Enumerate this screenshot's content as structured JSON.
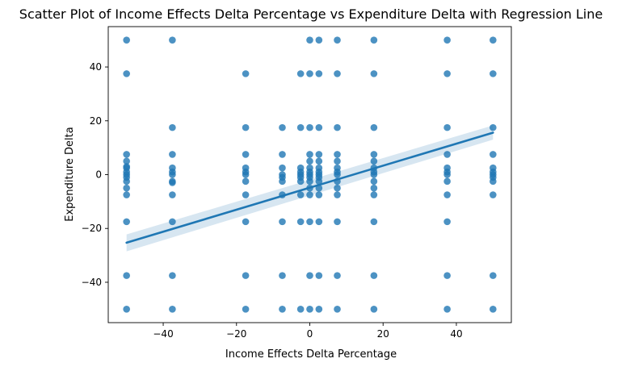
{
  "chart_data": {
    "type": "scatter",
    "title": "Scatter Plot of Income Effects Delta Percentage vs Expenditure Delta with Regression Line",
    "xlabel": "Income Effects Delta Percentage",
    "ylabel": "Expenditure Delta",
    "xlim": [
      -55,
      55
    ],
    "ylim": [
      -55,
      55
    ],
    "xticks": [
      -40,
      -20,
      0,
      20,
      40
    ],
    "yticks": [
      -40,
      -20,
      0,
      20,
      40
    ],
    "xtick_labels": [
      "−40",
      "−20",
      "0",
      "20",
      "40"
    ],
    "ytick_labels": [
      "−40",
      "−20",
      "0",
      "20",
      "40"
    ],
    "grid": false,
    "points": {
      "x": [
        -50,
        -50,
        -50,
        -50,
        -50,
        -50,
        -50,
        -50,
        -50,
        -50,
        -50,
        -50,
        -50,
        -50,
        -50,
        -37.5,
        -37.5,
        -37.5,
        -37.5,
        -37.5,
        -37.5,
        -37.5,
        -37.5,
        -37.5,
        -37.5,
        -37.5,
        -37.5,
        -17.5,
        -17.5,
        -17.5,
        -17.5,
        -17.5,
        -17.5,
        -17.5,
        -17.5,
        -17.5,
        -17.5,
        -17.5,
        -7.5,
        -7.5,
        -7.5,
        -7.5,
        -7.5,
        -7.5,
        -7.5,
        -7.5,
        -7.5,
        -7.5,
        -2.5,
        -2.5,
        -2.5,
        -2.5,
        -2.5,
        -2.5,
        -2.5,
        -2.5,
        -2.5,
        -2.5,
        0,
        0,
        0,
        0,
        0,
        0,
        0,
        0,
        0,
        0,
        0,
        0,
        0,
        0,
        0,
        2.5,
        2.5,
        2.5,
        2.5,
        2.5,
        2.5,
        2.5,
        2.5,
        2.5,
        2.5,
        2.5,
        2.5,
        2.5,
        2.5,
        2.5,
        7.5,
        7.5,
        7.5,
        7.5,
        7.5,
        7.5,
        7.5,
        7.5,
        7.5,
        7.5,
        7.5,
        7.5,
        7.5,
        7.5,
        17.5,
        17.5,
        17.5,
        17.5,
        17.5,
        17.5,
        17.5,
        17.5,
        17.5,
        17.5,
        17.5,
        17.5,
        17.5,
        17.5,
        37.5,
        37.5,
        37.5,
        37.5,
        37.5,
        37.5,
        37.5,
        37.5,
        37.5,
        37.5,
        37.5,
        37.5,
        50,
        50,
        50,
        50,
        50,
        50,
        50,
        50,
        50,
        50,
        50,
        50
      ],
      "y": [
        50,
        37.5,
        7.5,
        5,
        2.5,
        0,
        -2.5,
        -5,
        -7.5,
        -17.5,
        -37.5,
        -50,
        1,
        -1,
        3,
        50,
        17.5,
        7.5,
        2.5,
        0,
        -2.5,
        -7.5,
        -17.5,
        -37.5,
        -50,
        1,
        -3,
        37.5,
        17.5,
        7.5,
        2.5,
        0,
        -2.5,
        -7.5,
        -17.5,
        -37.5,
        -50,
        1,
        17.5,
        7.5,
        2.5,
        0,
        -2.5,
        -7.5,
        -17.5,
        -37.5,
        -50,
        -1,
        37.5,
        17.5,
        2.5,
        0,
        -2.5,
        -7.5,
        -17.5,
        -50,
        1,
        -1,
        50,
        37.5,
        17.5,
        7.5,
        5,
        2.5,
        0,
        -2.5,
        -5,
        -7.5,
        -17.5,
        -37.5,
        -50,
        1,
        -1,
        50,
        37.5,
        17.5,
        7.5,
        5,
        2.5,
        0,
        -2.5,
        -5,
        -7.5,
        -17.5,
        -37.5,
        -50,
        1,
        -1,
        50,
        37.5,
        17.5,
        7.5,
        5,
        2.5,
        0,
        -2.5,
        -5,
        -7.5,
        -17.5,
        -37.5,
        -50,
        1,
        50,
        37.5,
        17.5,
        7.5,
        5,
        2.5,
        0,
        -2.5,
        -5,
        -7.5,
        -17.5,
        -37.5,
        -50,
        1,
        50,
        37.5,
        17.5,
        7.5,
        2.5,
        0,
        -2.5,
        -7.5,
        -17.5,
        -37.5,
        -50,
        1,
        50,
        37.5,
        17.5,
        7.5,
        2.5,
        0,
        -2.5,
        -7.5,
        -37.5,
        -50,
        1,
        -1
      ]
    },
    "regression": {
      "x": [
        -50,
        50
      ],
      "y": [
        -25.3,
        15.6
      ],
      "ci_lower": [
        -28.5,
        13.0
      ],
      "ci_upper": [
        -22.2,
        18.3
      ]
    },
    "colors": {
      "points": "#1f77b4",
      "line": "#1f77b4",
      "ci_band": "#1f77b4"
    }
  }
}
